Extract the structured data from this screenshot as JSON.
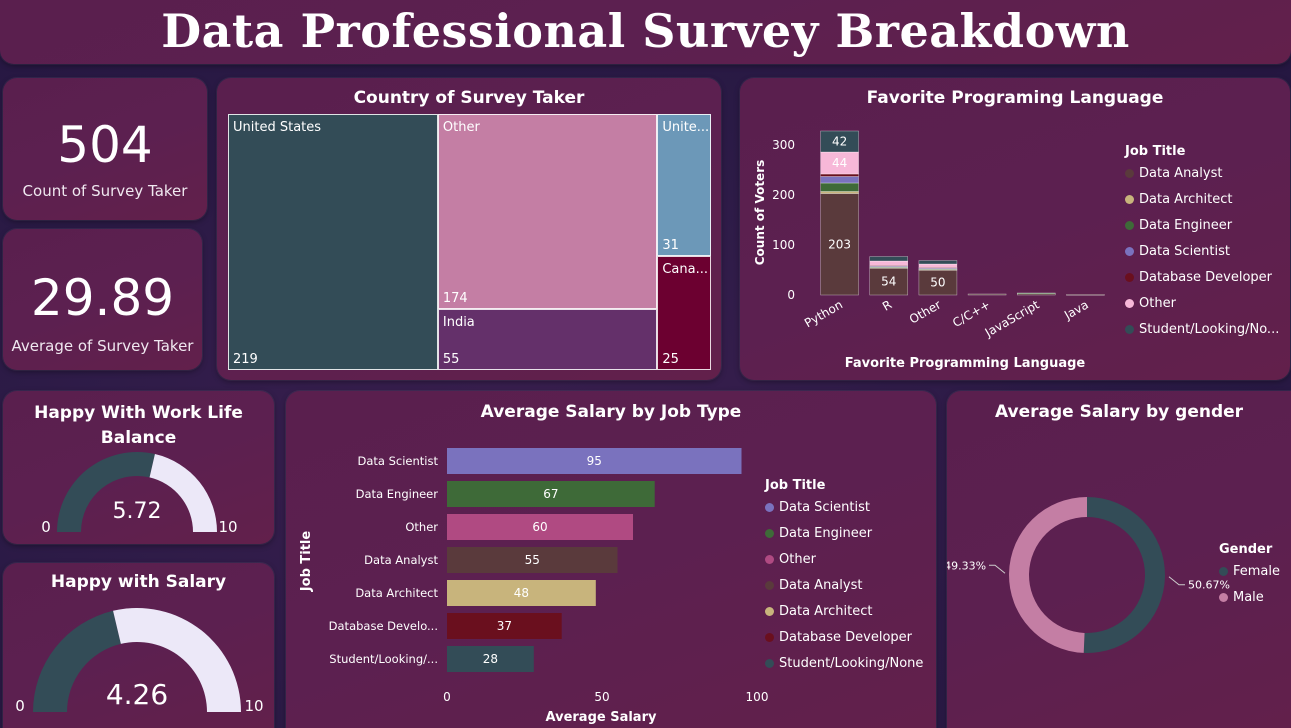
{
  "header": {
    "title": "Data Professional Survey Breakdown"
  },
  "kpis": {
    "count": {
      "value": "504",
      "label": "Count of Survey Taker"
    },
    "average": {
      "value": "29.89",
      "label": "Average of Survey Taker"
    }
  },
  "colors": {
    "Data Analyst": "#5a3a3c",
    "Data Architect": "#c8b47c",
    "Data Engineer": "#3e6a38",
    "Data Scientist": "#7a72be",
    "Database Developer": "#6a0f1e",
    "Other": "#f7b8d8",
    "Student/Looking/None": "#334c57"
  },
  "chart_data": [
    {
      "id": "country",
      "type": "treemap",
      "title": "Country of Survey Taker",
      "items": [
        {
          "label": "United States",
          "value": 219,
          "value_text": "219",
          "color": "#334c57"
        },
        {
          "label": "Other",
          "value": 174,
          "value_text": "174",
          "color": "#c47ea4"
        },
        {
          "label": "India",
          "value": 55,
          "value_text": "55",
          "color": "#64306a"
        },
        {
          "label": "Unite...",
          "value": 31,
          "value_text": "31",
          "color": "#6c98b8"
        },
        {
          "label": "Cana...",
          "value": 25,
          "value_text": "25",
          "color": "#6c0030"
        }
      ]
    },
    {
      "id": "language",
      "type": "bar",
      "stacked": true,
      "title": "Favorite Programing Language",
      "xlabel": "Favorite Programming Language",
      "ylabel": "Count of Voters",
      "ylim": [
        0,
        330
      ],
      "yticks": [
        0,
        100,
        200,
        300
      ],
      "categories": [
        "Python",
        "R",
        "Other",
        "C/C++",
        "JavaScript",
        "Java"
      ],
      "legend_title": "Job Title",
      "series": [
        {
          "name": "Data Analyst",
          "values": [
            203,
            54,
            50,
            2,
            3,
            1
          ],
          "labels": [
            "203",
            "54",
            "50",
            "",
            "",
            ""
          ]
        },
        {
          "name": "Data Architect",
          "values": [
            4,
            1,
            1,
            0,
            0,
            0
          ],
          "labels": [
            "",
            "",
            "",
            "",
            "",
            ""
          ]
        },
        {
          "name": "Data Engineer",
          "values": [
            17,
            1,
            1,
            0,
            1,
            0
          ],
          "labels": [
            "",
            "",
            "",
            "",
            "",
            ""
          ]
        },
        {
          "name": "Data Scientist",
          "values": [
            13,
            2,
            2,
            0,
            0,
            0
          ],
          "labels": [
            "",
            "",
            "",
            "",
            "",
            ""
          ]
        },
        {
          "name": "Database Developer",
          "values": [
            5,
            1,
            1,
            0,
            0,
            0
          ],
          "labels": [
            "",
            "",
            "",
            "",
            "",
            ""
          ]
        },
        {
          "name": "Other",
          "values": [
            44,
            9,
            7,
            0,
            0,
            0
          ],
          "labels": [
            "44",
            "",
            "",
            "",
            "",
            ""
          ]
        },
        {
          "name": "Student/Looking/No...",
          "values": [
            42,
            9,
            7,
            0,
            0,
            0
          ],
          "labels": [
            "42",
            "",
            "",
            "",
            "",
            ""
          ]
        }
      ]
    },
    {
      "id": "gauge_wlb",
      "type": "gauge",
      "title": "Happy With Work Life Balance",
      "value": 5.72,
      "value_text": "5.72",
      "min": 0,
      "max": 10,
      "min_text": "0",
      "max_text": "10"
    },
    {
      "id": "gauge_salary",
      "type": "gauge",
      "title": "Happy with Salary",
      "value": 4.26,
      "value_text": "4.26",
      "min": 0,
      "max": 10,
      "min_text": "0",
      "max_text": "10"
    },
    {
      "id": "salary_job",
      "type": "bar",
      "orientation": "horizontal",
      "title": "Average Salary by Job Type",
      "xlabel": "Average Salary",
      "ylabel": "Job Title",
      "xlim": [
        0,
        100
      ],
      "xticks": [
        0,
        50,
        100
      ],
      "legend_title": "Job Title",
      "categories": [
        "Data Scientist",
        "Data Engineer",
        "Other",
        "Data Analyst",
        "Data Architect",
        "Database Develo...",
        "Student/Looking/..."
      ],
      "legend_labels": [
        "Data Scientist",
        "Data Engineer",
        "Other",
        "Data Analyst",
        "Data Architect",
        "Database Developer",
        "Student/Looking/None"
      ],
      "values": [
        95,
        67,
        60,
        55,
        48,
        37,
        28
      ],
      "colors": [
        "#7a72be",
        "#3e6a38",
        "#b04a82",
        "#5a3a3c",
        "#c8b47c",
        "#6a0f1e",
        "#334c57"
      ]
    },
    {
      "id": "salary_gender",
      "type": "pie",
      "donut": true,
      "title": "Average Salary by gender",
      "legend_title": "Gender",
      "slices": [
        {
          "name": "Female",
          "value": 50.67,
          "label": "50.67%",
          "color": "#334c57"
        },
        {
          "name": "Male",
          "value": 49.33,
          "label": "49.33%",
          "color": "#c47ea4"
        }
      ]
    }
  ]
}
